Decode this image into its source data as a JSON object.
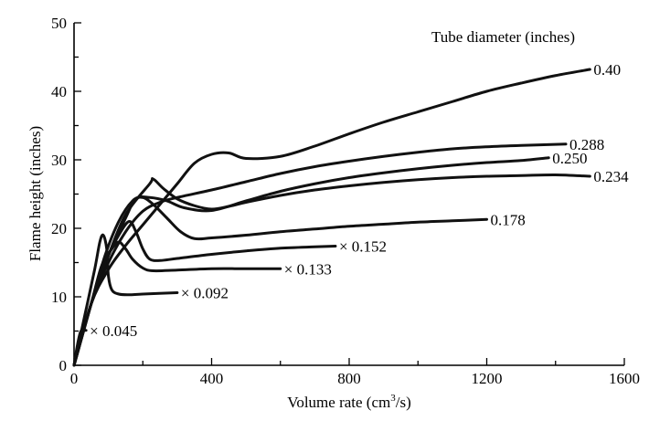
{
  "chart_data": {
    "type": "line",
    "title": "",
    "xlabel": "Volume rate (cm",
    "xlabel_sup": "3",
    "xlabel_tail": "/s)",
    "ylabel": "Flame height (inches)",
    "xlim": [
      0,
      1600
    ],
    "ylim": [
      0,
      50
    ],
    "x_ticks": [
      0,
      400,
      800,
      1200,
      1600
    ],
    "y_ticks": [
      0,
      10,
      20,
      30,
      40,
      50
    ],
    "legend_title": "Tube diameter (inches)",
    "grid": false,
    "series": [
      {
        "name": "0.40",
        "terminal": false,
        "points": [
          [
            0,
            0
          ],
          [
            50,
            9
          ],
          [
            100,
            14
          ],
          [
            150,
            17.5
          ],
          [
            200,
            20.5
          ],
          [
            250,
            23.5
          ],
          [
            300,
            26.5
          ],
          [
            350,
            29.5
          ],
          [
            400,
            30.8
          ],
          [
            450,
            31
          ],
          [
            500,
            30.2
          ],
          [
            600,
            30.5
          ],
          [
            700,
            32
          ],
          [
            800,
            33.8
          ],
          [
            900,
            35.5
          ],
          [
            1000,
            37
          ],
          [
            1100,
            38.5
          ],
          [
            1200,
            40
          ],
          [
            1300,
            41.2
          ],
          [
            1400,
            42.3
          ],
          [
            1500,
            43.2
          ]
        ]
      },
      {
        "name": "0.288",
        "terminal": false,
        "points": [
          [
            0,
            0
          ],
          [
            50,
            9
          ],
          [
            100,
            15
          ],
          [
            150,
            19.5
          ],
          [
            200,
            22.5
          ],
          [
            250,
            23.8
          ],
          [
            300,
            24.5
          ],
          [
            400,
            25.6
          ],
          [
            500,
            26.8
          ],
          [
            600,
            28
          ],
          [
            700,
            29
          ],
          [
            800,
            29.8
          ],
          [
            900,
            30.5
          ],
          [
            1000,
            31.1
          ],
          [
            1100,
            31.6
          ],
          [
            1200,
            31.9
          ],
          [
            1300,
            32.1
          ],
          [
            1430,
            32.3
          ]
        ]
      },
      {
        "name": "0.250",
        "terminal": false,
        "points": [
          [
            0,
            0
          ],
          [
            50,
            9
          ],
          [
            100,
            16
          ],
          [
            150,
            21.5
          ],
          [
            180,
            24.3
          ],
          [
            220,
            24.5
          ],
          [
            270,
            24
          ],
          [
            320,
            23
          ],
          [
            400,
            22.6
          ],
          [
            500,
            24
          ],
          [
            600,
            25.4
          ],
          [
            700,
            26.5
          ],
          [
            800,
            27.4
          ],
          [
            900,
            28.1
          ],
          [
            1000,
            28.7
          ],
          [
            1100,
            29.2
          ],
          [
            1200,
            29.6
          ],
          [
            1300,
            29.9
          ],
          [
            1380,
            30.3
          ]
        ]
      },
      {
        "name": "0.234",
        "terminal": false,
        "points": [
          [
            0,
            0
          ],
          [
            50,
            9
          ],
          [
            100,
            16
          ],
          [
            150,
            22
          ],
          [
            220,
            26.5
          ],
          [
            230,
            27.2
          ],
          [
            260,
            25.8
          ],
          [
            300,
            24.3
          ],
          [
            350,
            23.3
          ],
          [
            400,
            22.8
          ],
          [
            450,
            23.2
          ],
          [
            500,
            23.8
          ],
          [
            600,
            24.8
          ],
          [
            700,
            25.6
          ],
          [
            800,
            26.2
          ],
          [
            900,
            26.7
          ],
          [
            1000,
            27.1
          ],
          [
            1100,
            27.4
          ],
          [
            1200,
            27.6
          ],
          [
            1300,
            27.7
          ],
          [
            1400,
            27.8
          ],
          [
            1500,
            27.6
          ]
        ]
      },
      {
        "name": "0.178",
        "terminal": false,
        "points": [
          [
            0,
            0
          ],
          [
            50,
            9
          ],
          [
            90,
            16
          ],
          [
            130,
            21
          ],
          [
            170,
            24
          ],
          [
            200,
            24.5
          ],
          [
            230,
            23.5
          ],
          [
            270,
            21.5
          ],
          [
            310,
            19.5
          ],
          [
            350,
            18.5
          ],
          [
            400,
            18.6
          ],
          [
            500,
            19
          ],
          [
            600,
            19.5
          ],
          [
            700,
            19.9
          ],
          [
            800,
            20.3
          ],
          [
            900,
            20.6
          ],
          [
            1000,
            20.9
          ],
          [
            1100,
            21.1
          ],
          [
            1200,
            21.3
          ]
        ]
      },
      {
        "name": "0.152",
        "terminal": true,
        "points": [
          [
            0,
            0
          ],
          [
            50,
            9
          ],
          [
            90,
            15
          ],
          [
            130,
            19
          ],
          [
            160,
            21
          ],
          [
            180,
            19.5
          ],
          [
            200,
            17
          ],
          [
            220,
            15.5
          ],
          [
            250,
            15.3
          ],
          [
            300,
            15.6
          ],
          [
            400,
            16.2
          ],
          [
            500,
            16.7
          ],
          [
            600,
            17.1
          ],
          [
            700,
            17.3
          ],
          [
            760,
            17.4
          ]
        ]
      },
      {
        "name": "0.133",
        "terminal": true,
        "points": [
          [
            0,
            0
          ],
          [
            50,
            9
          ],
          [
            80,
            14.5
          ],
          [
            110,
            17
          ],
          [
            130,
            18
          ],
          [
            150,
            17
          ],
          [
            170,
            15.5
          ],
          [
            200,
            14.2
          ],
          [
            230,
            13.8
          ],
          [
            300,
            13.9
          ],
          [
            400,
            14.1
          ],
          [
            500,
            14.1
          ],
          [
            600,
            14.1
          ]
        ]
      },
      {
        "name": "0.092",
        "terminal": true,
        "points": [
          [
            0,
            0
          ],
          [
            30,
            7
          ],
          [
            60,
            14
          ],
          [
            75,
            18
          ],
          [
            85,
            19
          ],
          [
            95,
            17
          ],
          [
            100,
            13
          ],
          [
            110,
            11
          ],
          [
            130,
            10.4
          ],
          [
            160,
            10.3
          ],
          [
            200,
            10.4
          ],
          [
            300,
            10.6
          ]
        ]
      },
      {
        "name": "0.045",
        "terminal": true,
        "points": [
          [
            0,
            0
          ],
          [
            10,
            3
          ],
          [
            20,
            5
          ],
          [
            35,
            5.1
          ]
        ]
      }
    ]
  }
}
